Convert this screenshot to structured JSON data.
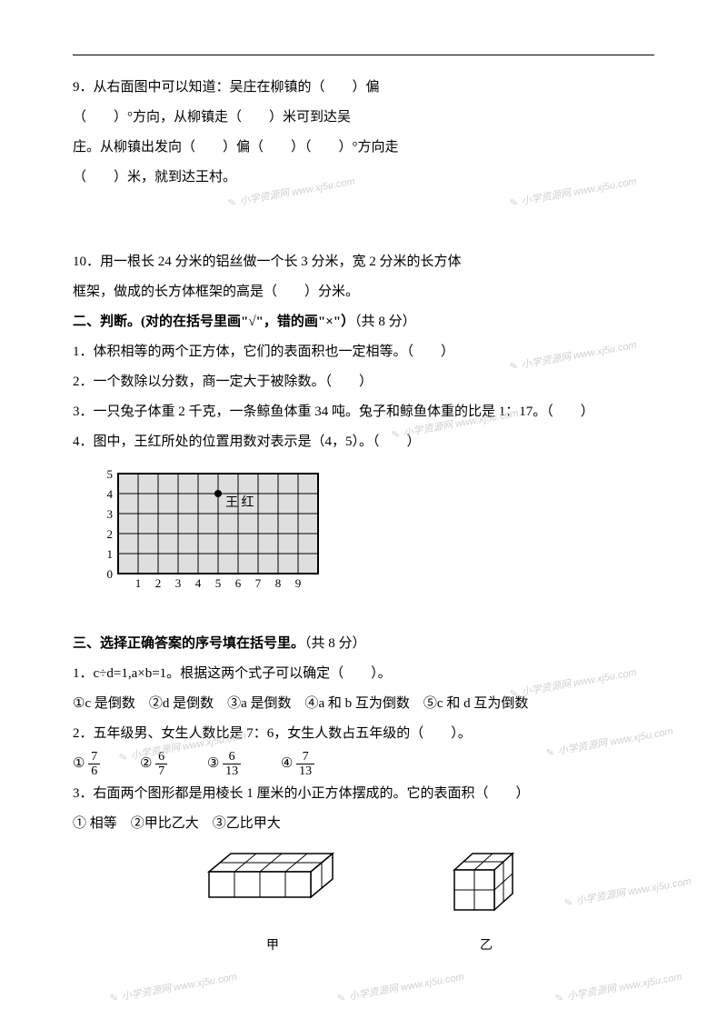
{
  "q9": {
    "line1": "9．从右面图中可以知道：吴庄在柳镇的（　　）偏",
    "line2": "（　　）°方向，从柳镇走（　　）米可到达吴",
    "line3": "庄。从柳镇出发向（　　）偏（　　）（　　）°方向走",
    "line4": "（　　）米，就到达王村。"
  },
  "q10": {
    "line1": "10．用一根长 24 分米的铝丝做一个长 3 分米，宽 2 分米的长方体",
    "line2": "框架，做成的长方体框架的高是（　　）分米。"
  },
  "section2": {
    "title": "二、判断。(对的在括号里画\"√\"，错的画\"×\"）",
    "points": "（共 8 分）",
    "q1": "1．体积相等的两个正方体，它们的表面积也一定相等。（　　）",
    "q2": "2．一个数除以分数，商一定大于被除数。（　　）",
    "q3": "3．一只兔子体重 2 千克，一条鲸鱼体重 34 吨。兔子和鲸鱼体重的比是 1：17。（　　）",
    "q4": "4．图中，王红所处的位置用数对表示是（4，5）。（　　）"
  },
  "grid": {
    "x_labels": [
      "1",
      "2",
      "3",
      "4",
      "5",
      "6",
      "7",
      "8",
      "9"
    ],
    "y_labels": [
      "5",
      "4",
      "3",
      "2",
      "1",
      "0"
    ],
    "point_label": "王 红",
    "cols": 10,
    "rows": 6,
    "cell": 22,
    "point_col": 5,
    "point_row": 4,
    "stroke": "#000000",
    "bg": "#dedede"
  },
  "section3": {
    "title": "三、选择正确答案的序号填在括号里。",
    "points": "（共 8 分）",
    "q1": {
      "stem": "1．c÷d=1,a×b=1。根据这两个式子可以确定（　　）。",
      "opts": "①c 是倒数　②d 是倒数　③a 是倒数　④a 和 b 互为倒数　⑤c 和 d 互为倒数"
    },
    "q2": {
      "stem": "2．五年级男、女生人数比是 7：6，女生人数占五年级的（　　）。",
      "opt1": "①",
      "frac1_num": "7",
      "frac1_den": "6",
      "opt2": "②",
      "frac2_num": "6",
      "frac2_den": "7",
      "opt3": "③",
      "frac3_num": "6",
      "frac3_den": "13",
      "opt4": "④",
      "frac4_num": "7",
      "frac4_den": "13"
    },
    "q3": {
      "stem": "3．右面两个图形都是用棱长 1 厘米的小正方体摆成的。它的表面积（　　）",
      "opts": "①  相等　②甲比乙大　③乙比甲大",
      "label_a": "甲",
      "label_b": "乙"
    }
  },
  "watermark_text": "小学资源网 www.xj5u.com",
  "colors": {
    "text": "#000000",
    "wm": "#d0d0d0",
    "bg": "#ffffff"
  }
}
